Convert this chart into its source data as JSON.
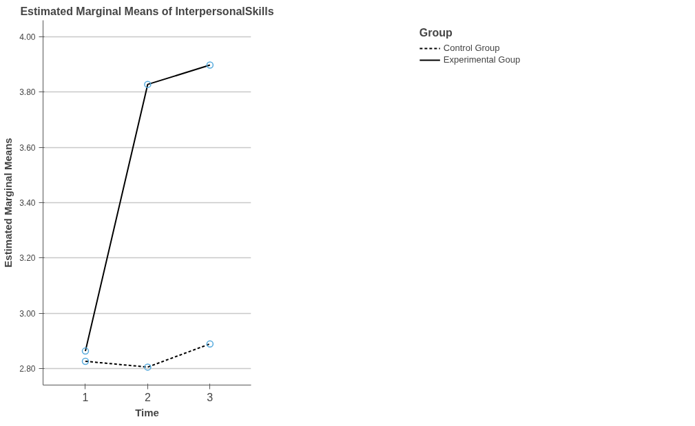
{
  "chart_data": {
    "type": "line",
    "title": "Estimated Marginal Means of InterpersonalSkills",
    "xlabel": "Time",
    "ylabel": "Estimated Marginal Means",
    "legend_title": "Group",
    "categories": [
      "1",
      "2",
      "3"
    ],
    "series": [
      {
        "name": "Control Group",
        "color": "#000000",
        "line_style": "dashed",
        "values": [
          2.826,
          2.805,
          2.889
        ]
      },
      {
        "name": "Experimental Goup",
        "color": "#000000",
        "line_style": "solid",
        "values": [
          2.863,
          3.828,
          3.898
        ]
      }
    ],
    "ylim": [
      2.74,
      4.06
    ],
    "yticks": [
      {
        "value": 2.8,
        "label": "2.80"
      },
      {
        "value": 3.0,
        "label": "3.00"
      },
      {
        "value": 3.2,
        "label": "3.20"
      },
      {
        "value": 3.4,
        "label": "3.40"
      },
      {
        "value": 3.6,
        "label": "3.60"
      },
      {
        "value": 3.8,
        "label": "3.80"
      },
      {
        "value": 4.0,
        "label": "4.00"
      }
    ],
    "grid": "y",
    "legend": "top right",
    "marker": "circle"
  }
}
